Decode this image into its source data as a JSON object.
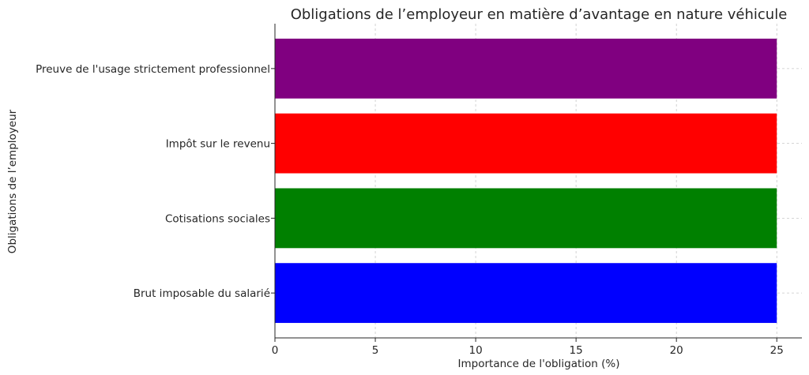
{
  "chart_data": {
    "type": "bar",
    "orientation": "horizontal",
    "title": "Obligations de l’employeur en matière d’avantage en nature véhicule",
    "xlabel": "Importance de l'obligation (%)",
    "ylabel": "Obligations de l’employeur",
    "categories": [
      "Brut imposable du salarié",
      "Cotisations sociales",
      "Impôt sur le revenu",
      "Preuve de l'usage strictement professionnel"
    ],
    "values": [
      25,
      25,
      25,
      25
    ],
    "colors": [
      "#0000ff",
      "#008000",
      "#ff0000",
      "#800080"
    ],
    "xlim": [
      0,
      26.25
    ],
    "xticks": [
      0,
      5,
      10,
      15,
      20,
      25
    ],
    "grid": true
  }
}
